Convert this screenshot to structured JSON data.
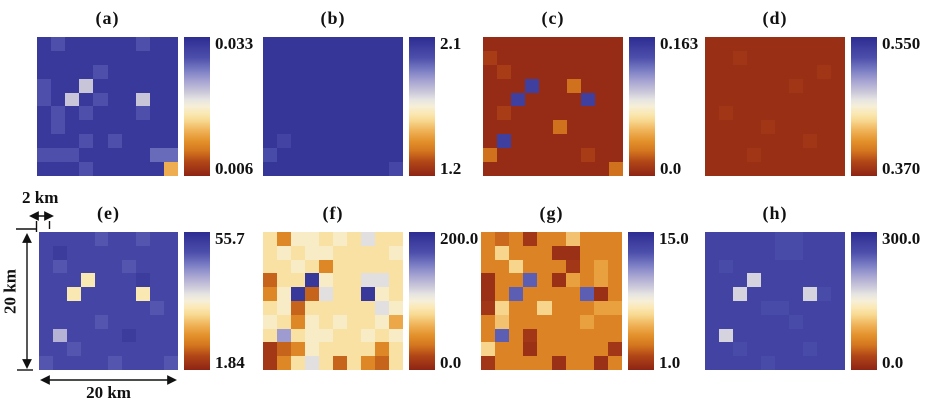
{
  "figure": {
    "background": "#ffffff",
    "text_color": "#111111",
    "grid_rows": 10,
    "grid_cols": 10,
    "extent_km": {
      "width_label_value": 20,
      "height_label_value": 20,
      "cell_label_value": 2
    }
  },
  "colormap": {
    "description": "blue(high) - cream white(mid) - orange - dark red(low)",
    "stops": [
      {
        "t": 0.0,
        "color": "#8d2414"
      },
      {
        "t": 0.1,
        "color": "#b04517"
      },
      {
        "t": 0.18,
        "color": "#d4761f"
      },
      {
        "t": 0.25,
        "color": "#e3912b"
      },
      {
        "t": 0.33,
        "color": "#f0b45a"
      },
      {
        "t": 0.4,
        "color": "#f8d992"
      },
      {
        "t": 0.45,
        "color": "#fae8b4"
      },
      {
        "t": 0.5,
        "color": "#f6efd8"
      },
      {
        "t": 0.55,
        "color": "#e6e4e2"
      },
      {
        "t": 0.6,
        "color": "#cdcada"
      },
      {
        "t": 0.68,
        "color": "#a8a5d2"
      },
      {
        "t": 0.76,
        "color": "#7b7ec4"
      },
      {
        "t": 0.85,
        "color": "#4d4fab"
      },
      {
        "t": 1.0,
        "color": "#2d2c92"
      }
    ]
  },
  "annotations": {
    "cell_scale_label": "2 km",
    "height_label": "20 km",
    "width_label": "20 km"
  },
  "chart_data": [
    {
      "type": "heatmap",
      "title": "(a)",
      "vmin": 0.006,
      "vmax": 0.033,
      "colorbar": {
        "top_label": "0.033",
        "bottom_label": "0.006"
      },
      "values": [
        [
          0.0315,
          0.029,
          0.0315,
          0.0315,
          0.0315,
          0.0315,
          0.0315,
          0.029,
          0.0315,
          0.0315
        ],
        [
          0.0315,
          0.0315,
          0.0315,
          0.0315,
          0.0315,
          0.0315,
          0.0315,
          0.0315,
          0.0315,
          0.0315
        ],
        [
          0.0315,
          0.0315,
          0.0315,
          0.0315,
          0.029,
          0.0315,
          0.0315,
          0.0315,
          0.0315,
          0.0315
        ],
        [
          0.029,
          0.0315,
          0.0315,
          0.0225,
          0.0315,
          0.0315,
          0.0315,
          0.0315,
          0.0315,
          0.0315
        ],
        [
          0.029,
          0.0315,
          0.0225,
          0.0315,
          0.029,
          0.0315,
          0.0315,
          0.0225,
          0.0315,
          0.0315
        ],
        [
          0.0315,
          0.029,
          0.0315,
          0.029,
          0.0315,
          0.0315,
          0.0315,
          0.029,
          0.0315,
          0.0315
        ],
        [
          0.0315,
          0.029,
          0.0315,
          0.0315,
          0.0315,
          0.0315,
          0.0315,
          0.0315,
          0.0315,
          0.0315
        ],
        [
          0.0315,
          0.0315,
          0.0315,
          0.029,
          0.0315,
          0.029,
          0.0315,
          0.0315,
          0.0315,
          0.0315
        ],
        [
          0.029,
          0.029,
          0.029,
          0.0315,
          0.0315,
          0.0315,
          0.0315,
          0.0315,
          0.0275,
          0.0275
        ],
        [
          0.0315,
          0.0315,
          0.0315,
          0.029,
          0.0315,
          0.0315,
          0.0315,
          0.0315,
          0.0315,
          0.0145
        ]
      ]
    },
    {
      "type": "heatmap",
      "title": "(b)",
      "vmin": 1.2,
      "vmax": 2.1,
      "colorbar": {
        "top_label": "2.1",
        "bottom_label": "1.2"
      },
      "values": [
        [
          2.06,
          2.06,
          2.06,
          2.06,
          2.06,
          2.06,
          2.06,
          2.06,
          2.06,
          2.06
        ],
        [
          2.06,
          2.06,
          2.06,
          2.06,
          2.06,
          2.06,
          2.06,
          2.06,
          2.06,
          2.06
        ],
        [
          2.06,
          2.06,
          2.06,
          2.06,
          2.06,
          2.06,
          2.06,
          2.06,
          2.06,
          2.06
        ],
        [
          2.06,
          2.06,
          2.06,
          2.06,
          2.06,
          2.06,
          2.06,
          2.06,
          2.06,
          2.06
        ],
        [
          2.06,
          2.06,
          2.06,
          2.06,
          2.06,
          2.06,
          2.06,
          2.06,
          2.06,
          2.06
        ],
        [
          2.06,
          2.06,
          2.06,
          2.06,
          2.06,
          2.06,
          2.06,
          2.06,
          2.06,
          2.06
        ],
        [
          2.06,
          2.06,
          2.06,
          2.06,
          2.06,
          2.06,
          2.06,
          2.06,
          2.06,
          2.06
        ],
        [
          2.06,
          2.01,
          2.06,
          2.06,
          2.06,
          2.06,
          2.06,
          2.06,
          2.06,
          2.06
        ],
        [
          1.98,
          2.06,
          2.06,
          2.06,
          2.06,
          2.06,
          2.06,
          2.06,
          2.06,
          2.06
        ],
        [
          2.06,
          2.06,
          2.06,
          2.06,
          2.06,
          2.06,
          2.06,
          2.06,
          2.06,
          2.0
        ]
      ]
    },
    {
      "type": "heatmap",
      "title": "(c)",
      "vmin": 0.0,
      "vmax": 0.163,
      "colorbar": {
        "top_label": "0.163",
        "bottom_label": "0.0"
      },
      "values": [
        [
          0.004,
          0.004,
          0.004,
          0.004,
          0.004,
          0.004,
          0.004,
          0.004,
          0.004,
          0.004
        ],
        [
          0.012,
          0.004,
          0.004,
          0.004,
          0.004,
          0.004,
          0.004,
          0.004,
          0.004,
          0.004
        ],
        [
          0.004,
          0.012,
          0.004,
          0.004,
          0.004,
          0.004,
          0.004,
          0.004,
          0.004,
          0.004
        ],
        [
          0.004,
          0.004,
          0.004,
          0.15,
          0.004,
          0.004,
          0.028,
          0.004,
          0.004,
          0.004
        ],
        [
          0.004,
          0.004,
          0.15,
          0.004,
          0.004,
          0.004,
          0.004,
          0.15,
          0.004,
          0.004
        ],
        [
          0.004,
          0.012,
          0.004,
          0.004,
          0.004,
          0.004,
          0.004,
          0.004,
          0.004,
          0.004
        ],
        [
          0.004,
          0.004,
          0.004,
          0.004,
          0.004,
          0.028,
          0.004,
          0.004,
          0.004,
          0.004
        ],
        [
          0.004,
          0.15,
          0.004,
          0.004,
          0.004,
          0.004,
          0.004,
          0.004,
          0.004,
          0.004
        ],
        [
          0.028,
          0.004,
          0.004,
          0.004,
          0.004,
          0.004,
          0.004,
          0.012,
          0.004,
          0.004
        ],
        [
          0.004,
          0.004,
          0.004,
          0.004,
          0.004,
          0.004,
          0.004,
          0.004,
          0.004,
          0.028
        ]
      ]
    },
    {
      "type": "heatmap",
      "title": "(d)",
      "vmin": 0.37,
      "vmax": 0.55,
      "colorbar": {
        "top_label": "0.550",
        "bottom_label": "0.370"
      },
      "values": [
        [
          0.376,
          0.376,
          0.376,
          0.376,
          0.376,
          0.376,
          0.376,
          0.376,
          0.376,
          0.376
        ],
        [
          0.376,
          0.376,
          0.38,
          0.376,
          0.376,
          0.376,
          0.376,
          0.376,
          0.376,
          0.376
        ],
        [
          0.376,
          0.376,
          0.376,
          0.376,
          0.376,
          0.376,
          0.376,
          0.376,
          0.38,
          0.376
        ],
        [
          0.376,
          0.376,
          0.376,
          0.376,
          0.376,
          0.376,
          0.38,
          0.376,
          0.376,
          0.376
        ],
        [
          0.376,
          0.376,
          0.376,
          0.376,
          0.376,
          0.376,
          0.376,
          0.376,
          0.376,
          0.376
        ],
        [
          0.376,
          0.38,
          0.376,
          0.376,
          0.376,
          0.376,
          0.376,
          0.376,
          0.376,
          0.376
        ],
        [
          0.376,
          0.376,
          0.376,
          0.376,
          0.38,
          0.376,
          0.376,
          0.376,
          0.376,
          0.376
        ],
        [
          0.376,
          0.376,
          0.376,
          0.376,
          0.376,
          0.376,
          0.376,
          0.38,
          0.376,
          0.376
        ],
        [
          0.376,
          0.376,
          0.376,
          0.38,
          0.376,
          0.376,
          0.376,
          0.376,
          0.376,
          0.376
        ],
        [
          0.376,
          0.376,
          0.376,
          0.376,
          0.376,
          0.376,
          0.376,
          0.376,
          0.376,
          0.376
        ]
      ]
    },
    {
      "type": "heatmap",
      "title": "(e)",
      "vmin": 1.84,
      "vmax": 55.7,
      "colorbar": {
        "top_label": "55.7",
        "bottom_label": "1.84"
      },
      "values": [
        [
          50,
          50,
          50,
          50,
          47,
          50,
          50,
          47,
          50,
          50
        ],
        [
          50,
          52,
          50,
          50,
          50,
          50,
          50,
          50,
          50,
          50
        ],
        [
          50,
          47,
          50,
          50,
          50,
          50,
          47,
          50,
          50,
          50
        ],
        [
          50,
          50,
          50,
          26,
          50,
          50,
          50,
          52,
          50,
          50
        ],
        [
          50,
          50,
          26,
          50,
          50,
          50,
          50,
          26,
          50,
          50
        ],
        [
          50,
          50,
          50,
          50,
          50,
          50,
          50,
          50,
          47,
          50
        ],
        [
          50,
          50,
          50,
          50,
          47,
          50,
          50,
          50,
          50,
          50
        ],
        [
          50,
          37,
          50,
          50,
          50,
          50,
          52,
          50,
          50,
          50
        ],
        [
          50,
          50,
          47,
          50,
          50,
          50,
          50,
          50,
          50,
          50
        ],
        [
          47,
          50,
          50,
          50,
          50,
          47,
          50,
          50,
          50,
          47
        ]
      ]
    },
    {
      "type": "heatmap",
      "title": "(f)",
      "vmin": 0.0,
      "vmax": 200.0,
      "colorbar": {
        "top_label": "200.0",
        "bottom_label": "0.0"
      },
      "values": [
        [
          85,
          45,
          95,
          95,
          85,
          95,
          85,
          112,
          85,
          85
        ],
        [
          85,
          95,
          85,
          95,
          95,
          85,
          85,
          85,
          85,
          95
        ],
        [
          85,
          85,
          95,
          85,
          45,
          85,
          85,
          85,
          85,
          85
        ],
        [
          30,
          85,
          85,
          190,
          95,
          85,
          85,
          112,
          112,
          85
        ],
        [
          45,
          95,
          190,
          30,
          112,
          85,
          85,
          190,
          95,
          85
        ],
        [
          85,
          95,
          30,
          85,
          85,
          85,
          85,
          85,
          112,
          95
        ],
        [
          95,
          85,
          45,
          95,
          85,
          95,
          85,
          85,
          95,
          60
        ],
        [
          85,
          140,
          85,
          95,
          95,
          85,
          85,
          95,
          85,
          95
        ],
        [
          12,
          30,
          45,
          95,
          85,
          85,
          85,
          85,
          45,
          85
        ],
        [
          12,
          45,
          85,
          112,
          85,
          30,
          85,
          45,
          30,
          85
        ]
      ]
    },
    {
      "type": "heatmap",
      "title": "(g)",
      "vmin": 1.0,
      "vmax": 15.0,
      "colorbar": {
        "top_label": "15.0",
        "bottom_label": "1.0"
      },
      "values": [
        [
          4,
          3.2,
          4,
          1.8,
          4,
          4,
          6,
          4,
          4,
          4
        ],
        [
          4,
          6.5,
          4,
          4,
          4,
          1.5,
          1.5,
          4,
          4,
          4
        ],
        [
          4,
          4,
          6.5,
          4,
          4,
          4,
          1.8,
          4,
          5,
          4
        ],
        [
          1.5,
          4,
          4,
          12.5,
          4,
          1.5,
          5,
          4,
          5,
          4
        ],
        [
          1.5,
          4,
          12.5,
          4,
          4,
          4,
          4,
          12.5,
          1.5,
          4
        ],
        [
          1.8,
          6.5,
          4,
          4,
          6.5,
          4,
          4,
          4,
          5,
          5
        ],
        [
          4,
          6,
          4,
          4,
          4,
          4,
          4,
          5,
          4,
          4
        ],
        [
          4,
          12.5,
          4,
          1.8,
          4,
          4,
          4,
          4,
          4,
          4
        ],
        [
          6.5,
          4,
          4,
          1.5,
          4,
          4,
          4,
          4,
          4,
          1.8
        ],
        [
          1.8,
          4,
          4,
          4,
          4,
          1.5,
          4,
          4,
          1.5,
          4
        ]
      ]
    },
    {
      "type": "heatmap",
      "title": "(h)",
      "vmin": 0.0,
      "vmax": 300.0,
      "colorbar": {
        "top_label": "300.0",
        "bottom_label": "0.0"
      },
      "values": [
        [
          270,
          270,
          270,
          270,
          270,
          260,
          260,
          270,
          270,
          270
        ],
        [
          270,
          270,
          270,
          270,
          270,
          260,
          260,
          270,
          270,
          270
        ],
        [
          270,
          260,
          270,
          270,
          270,
          270,
          270,
          270,
          270,
          270
        ],
        [
          270,
          270,
          270,
          175,
          270,
          270,
          270,
          270,
          270,
          270
        ],
        [
          270,
          270,
          175,
          270,
          270,
          270,
          270,
          175,
          260,
          270
        ],
        [
          270,
          270,
          270,
          270,
          260,
          260,
          270,
          270,
          270,
          270
        ],
        [
          270,
          270,
          270,
          270,
          270,
          270,
          260,
          270,
          270,
          270
        ],
        [
          270,
          175,
          270,
          270,
          270,
          270,
          270,
          270,
          270,
          270
        ],
        [
          270,
          270,
          260,
          270,
          270,
          270,
          270,
          260,
          270,
          270
        ],
        [
          270,
          270,
          270,
          270,
          260,
          270,
          270,
          270,
          270,
          270
        ]
      ]
    }
  ]
}
